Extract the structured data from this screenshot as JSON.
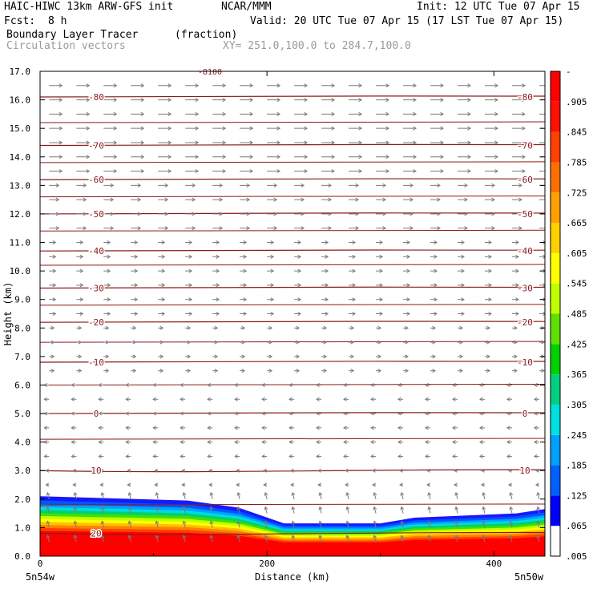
{
  "header": {
    "model": "HAIC-HIWC 13km ARW-GFS init",
    "org": "NCAR/MMM",
    "init": "Init: 12 UTC Tue 07 Apr 15",
    "fcst_label": "Fcst:",
    "fcst_value": "8 h",
    "valid": "Valid: 20 UTC Tue 07 Apr 15 (17 LST Tue 07 Apr 15)",
    "field_name": "Boundary Layer Tracer",
    "field_units": "(fraction)",
    "overlay_name": "Circulation vectors",
    "xy_range": "XY= 251.0,100.0 to 284.7,100.0"
  },
  "colors": {
    "contour": "#8b1a1a",
    "vector": "#7a7a7a",
    "colorbar": [
      "#ffffff",
      "#0000ff",
      "#0060ff",
      "#00a0ff",
      "#00e0e0",
      "#00d080",
      "#00d000",
      "#60e000",
      "#c0ff00",
      "#ffff00",
      "#ffd000",
      "#ffa000",
      "#ff7000",
      "#ff4000",
      "#ff1000",
      "#ff0000"
    ]
  },
  "chart_data": {
    "type": "heatmap",
    "title": "Boundary Layer Tracer",
    "xlabel": "Distance (km)",
    "ylabel": "Height (km)",
    "xlim": [
      0,
      445
    ],
    "ylim": [
      0,
      17
    ],
    "x_ticks": [
      0,
      200,
      400
    ],
    "y_ticks": [
      "0.0",
      "1.0",
      "2.0",
      "3.0",
      "4.0",
      "5.0",
      "6.0",
      "7.0",
      "8.0",
      "9.0",
      "10.0",
      "11.0",
      "12.0",
      "13.0",
      "14.0",
      "15.0",
      "16.0",
      "17.0"
    ],
    "x_end_labels": [
      "5n54w",
      "5n50w"
    ],
    "colorbar_labels": [
      ".005",
      ".065",
      ".125",
      ".185",
      ".245",
      ".305",
      ".365",
      ".425",
      ".485",
      ".545",
      ".605",
      ".665",
      ".725",
      ".785",
      ".845",
      ".905",
      "-"
    ],
    "boundary_layer_top_km": [
      {
        "x": 0,
        "z": 2.1
      },
      {
        "x": 130,
        "z": 1.95
      },
      {
        "x": 175,
        "z": 1.7
      },
      {
        "x": 215,
        "z": 1.15
      },
      {
        "x": 300,
        "z": 1.15
      },
      {
        "x": 330,
        "z": 1.35
      },
      {
        "x": 420,
        "z": 1.5
      },
      {
        "x": 445,
        "z": 1.65
      }
    ],
    "temperature_contours": [
      {
        "label": "-80",
        "z": 16.1
      },
      {
        "label": "-70",
        "z": 14.4
      },
      {
        "label": "-60",
        "z": 13.2
      },
      {
        "label": "-50",
        "z": 12.0
      },
      {
        "label": "-40",
        "z": 10.7
      },
      {
        "label": "-30",
        "z": 9.4
      },
      {
        "label": "-20",
        "z": 8.2
      },
      {
        "label": "-10",
        "z": 6.8
      },
      {
        "label": "0",
        "z": 5.0
      },
      {
        "label": "10",
        "z": 3.0
      },
      {
        "label": "20",
        "z": 0.8
      }
    ],
    "contour_top_label": "-8100"
  }
}
